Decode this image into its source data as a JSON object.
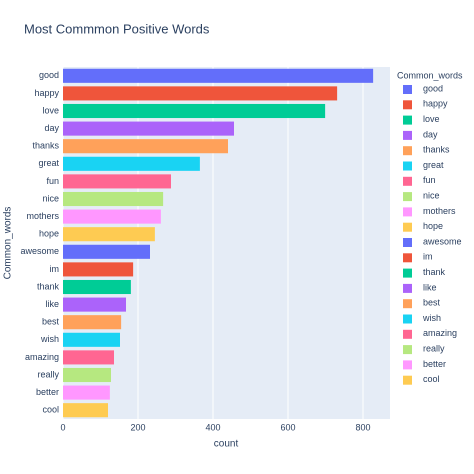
{
  "chart_data": {
    "type": "bar",
    "orientation": "horizontal",
    "title": "Most Commmon Positive Words",
    "x_label": "count",
    "y_label": "Common_words",
    "legend_title": "Common_words",
    "legend_position": "right",
    "categories": [
      "good",
      "happy",
      "love",
      "day",
      "thanks",
      "great",
      "fun",
      "nice",
      "mothers",
      "hope",
      "awesome",
      "im",
      "thank",
      "like",
      "best",
      "wish",
      "amazing",
      "really",
      "better",
      "cool"
    ],
    "values": [
      827,
      731,
      699,
      456,
      440,
      365,
      288,
      267,
      261,
      245,
      232,
      187,
      181,
      168,
      155,
      152,
      136,
      128,
      125,
      120
    ],
    "colors": [
      "#636efa",
      "#EF553B",
      "#00cc96",
      "#ab63fa",
      "#FFA15A",
      "#19d3f3",
      "#FF6692",
      "#B6E880",
      "#FF97FF",
      "#FECB52",
      "#636efa",
      "#EF553B",
      "#00cc96",
      "#ab63fa",
      "#FFA15A",
      "#19d3f3",
      "#FF6692",
      "#B6E880",
      "#FF97FF",
      "#FECB52"
    ],
    "xlim": [
      0,
      872
    ],
    "xticks": [
      0,
      200,
      400,
      600,
      800
    ],
    "grid": true,
    "plot_background": "#e5ecf6"
  }
}
